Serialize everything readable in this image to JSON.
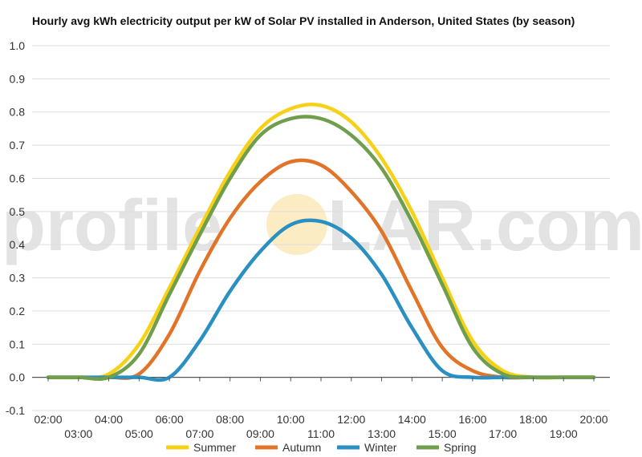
{
  "watermark": {
    "left": "profile",
    "right": "LAR.com",
    "sun_color": "#fcecc4"
  },
  "chart_data": {
    "type": "line",
    "title": "Hourly avg kWh electricity output per kW of Solar PV installed in Anderson, United States (by season)",
    "xlabel": "",
    "ylabel": "",
    "x": [
      "02:00",
      "03:00",
      "04:00",
      "05:00",
      "06:00",
      "07:00",
      "08:00",
      "09:00",
      "10:00",
      "11:00",
      "12:00",
      "13:00",
      "14:00",
      "15:00",
      "16:00",
      "17:00",
      "18:00",
      "19:00",
      "20:00"
    ],
    "ylim": [
      -0.1,
      1.0
    ],
    "yticks": [
      "1.0",
      "0.9",
      "0.8",
      "0.7",
      "0.6",
      "0.5",
      "0.4",
      "0.3",
      "0.2",
      "0.1",
      "0.0",
      "-0.1"
    ],
    "grid": true,
    "legend": "bottom",
    "series": [
      {
        "name": "Summer",
        "color": "#f7d117",
        "values": [
          0.0,
          0.0,
          0.01,
          0.1,
          0.27,
          0.45,
          0.62,
          0.75,
          0.81,
          0.82,
          0.77,
          0.66,
          0.5,
          0.3,
          0.11,
          0.02,
          0.0,
          0.0,
          0.0
        ]
      },
      {
        "name": "Autumn",
        "color": "#e27429",
        "values": [
          0.0,
          0.0,
          0.0,
          0.01,
          0.13,
          0.32,
          0.48,
          0.59,
          0.65,
          0.64,
          0.56,
          0.44,
          0.26,
          0.09,
          0.02,
          0.0,
          0.0,
          0.0,
          0.0
        ]
      },
      {
        "name": "Winter",
        "color": "#2a8fc1",
        "values": [
          0.0,
          0.0,
          0.0,
          0.0,
          0.0,
          0.11,
          0.26,
          0.38,
          0.46,
          0.47,
          0.42,
          0.31,
          0.15,
          0.02,
          0.0,
          0.0,
          0.0,
          0.0,
          0.0
        ]
      },
      {
        "name": "Spring",
        "color": "#6f9e4c",
        "values": [
          0.0,
          0.0,
          0.0,
          0.07,
          0.25,
          0.43,
          0.6,
          0.73,
          0.78,
          0.78,
          0.73,
          0.63,
          0.47,
          0.28,
          0.09,
          0.01,
          0.0,
          0.0,
          0.0
        ]
      }
    ]
  }
}
